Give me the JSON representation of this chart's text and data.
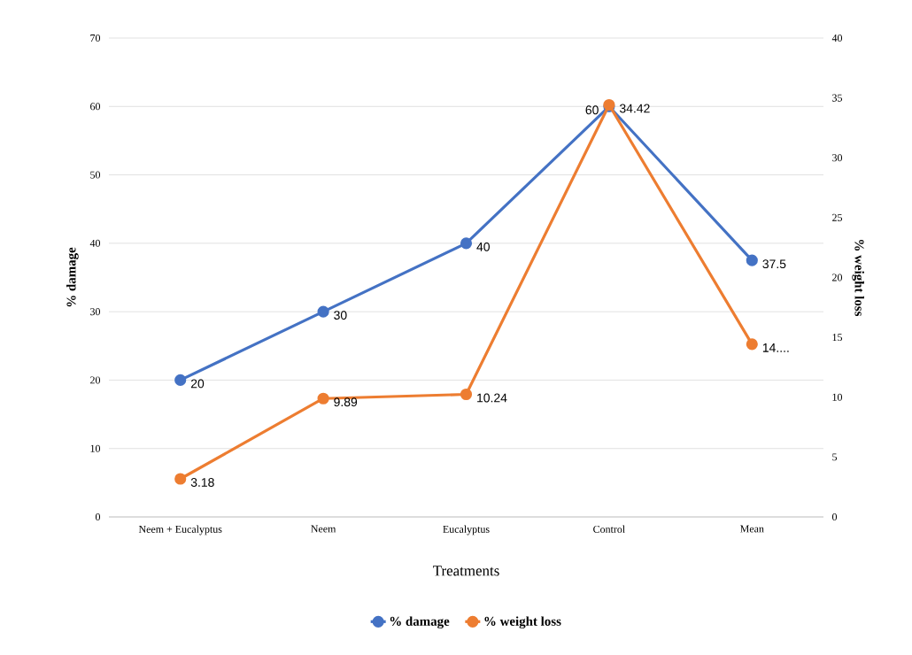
{
  "chart_data": {
    "type": "line",
    "xlabel": "Treatments",
    "ylabel": "% damage",
    "y2label": "% weight loss",
    "categories": [
      "Neem + Eucalyptus",
      "Neem",
      "Eucalyptus",
      "Control",
      "Mean"
    ],
    "series": [
      {
        "name": "% damage",
        "color": "#4472c4",
        "values": [
          20,
          30,
          40,
          60,
          37.5
        ],
        "value_labels": [
          "20",
          "30",
          "40",
          "60",
          "37.5"
        ]
      },
      {
        "name": "% weight loss",
        "color": "#ed7d31",
        "axis": "y2",
        "values": [
          3.18,
          9.89,
          10.24,
          34.42,
          14.43
        ],
        "value_labels": [
          "3.18",
          "9.89",
          "10.24",
          "34.42",
          "14...."
        ]
      }
    ],
    "ylim": [
      0,
      70
    ],
    "yticks": [
      0,
      10,
      20,
      30,
      40,
      50,
      60,
      70
    ],
    "y2lim": [
      0,
      40
    ],
    "y2ticks": [
      0,
      5,
      10,
      15,
      20,
      25,
      30,
      35,
      40
    ],
    "grid": "y",
    "legend": "bottom",
    "marker": "circle",
    "line_style": "solid"
  }
}
